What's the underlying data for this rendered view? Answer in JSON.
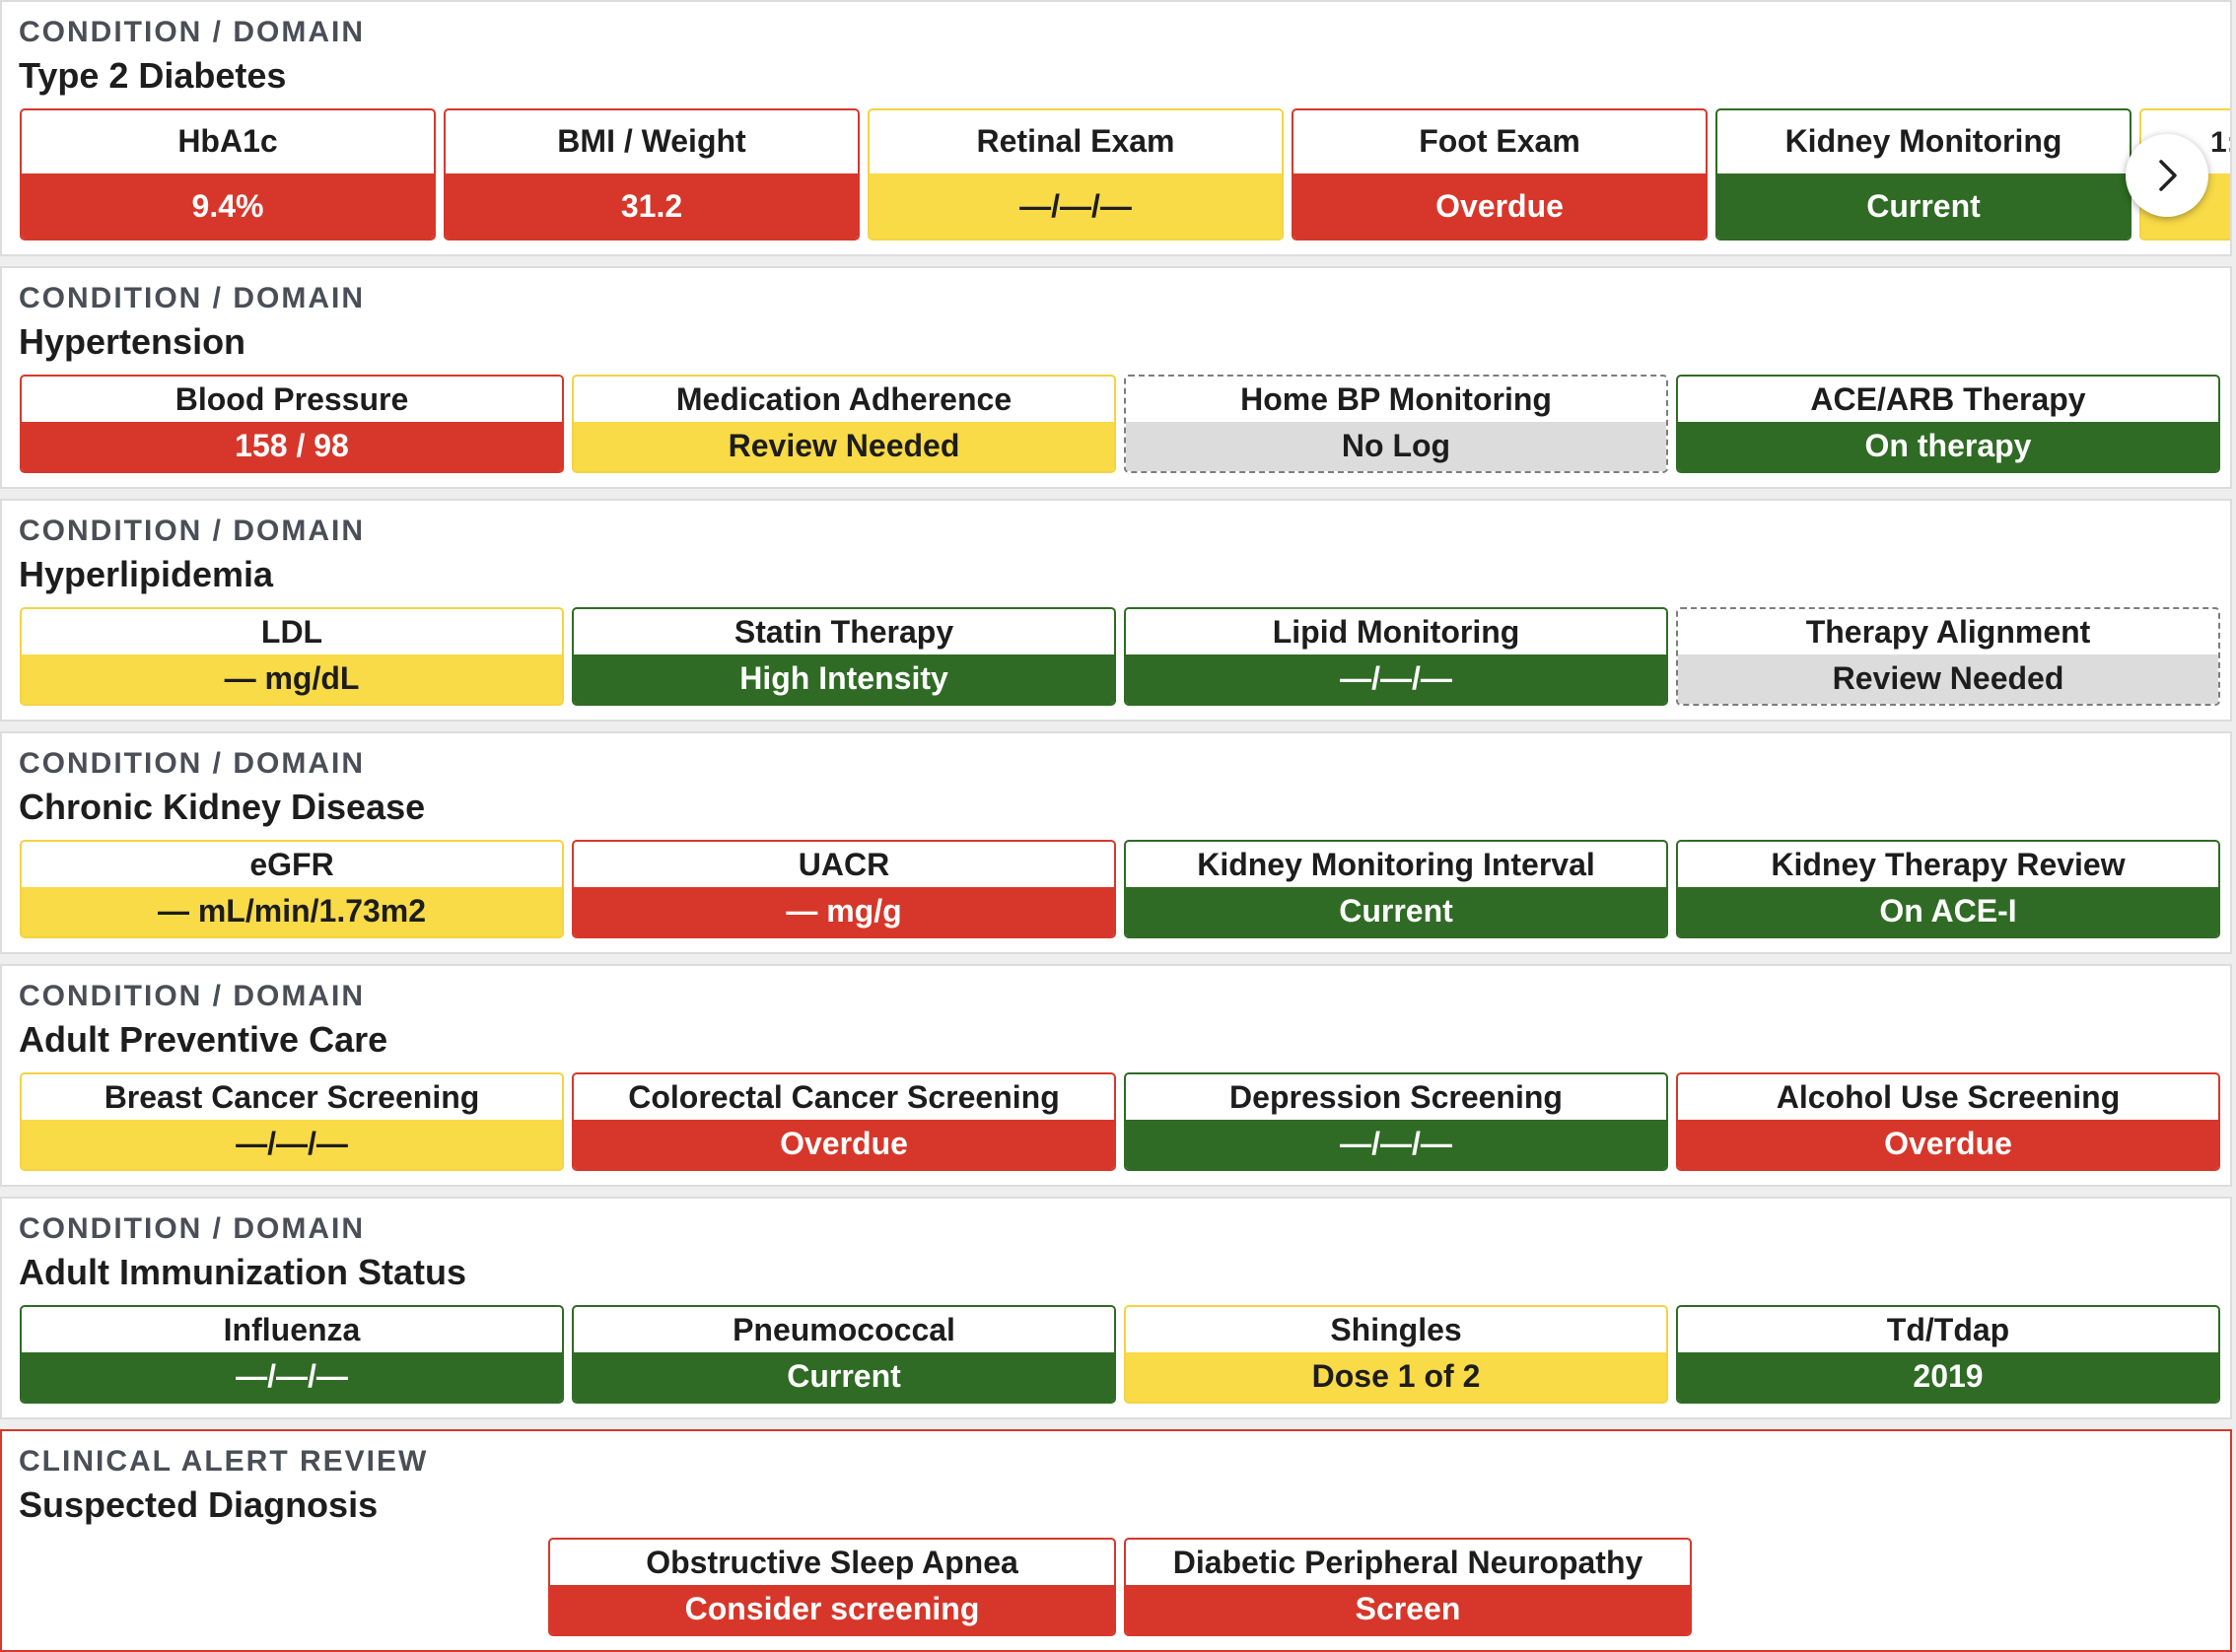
{
  "sections": [
    {
      "kicker": "CONDITION / DOMAIN",
      "title": "Type 2 Diabetes",
      "cards": [
        {
          "label": "HbA1c",
          "value": "9.4%",
          "status": "red"
        },
        {
          "label": "BMI / Weight",
          "value": "31.2",
          "status": "red"
        },
        {
          "label": "Retinal Exam",
          "value": "—/—/—",
          "status": "yellow"
        },
        {
          "label": "Foot Exam",
          "value": "Overdue",
          "status": "red"
        },
        {
          "label": "Kidney Monitoring",
          "value": "Current",
          "status": "green"
        }
      ],
      "peek_text": "1:"
    },
    {
      "kicker": "CONDITION / DOMAIN",
      "title": "Hypertension",
      "cards": [
        {
          "label": "Blood Pressure",
          "value": "158 / 98",
          "status": "red"
        },
        {
          "label": "Medication Adherence",
          "value": "Review Needed",
          "status": "yellow"
        },
        {
          "label": "Home BP Monitoring",
          "value": "No Log",
          "status": "gray"
        },
        {
          "label": "ACE/ARB Therapy",
          "value": "On therapy",
          "status": "green"
        }
      ]
    },
    {
      "kicker": "CONDITION / DOMAIN",
      "title": "Hyperlipidemia",
      "cards": [
        {
          "label": "LDL",
          "value": "— mg/dL",
          "status": "yellow"
        },
        {
          "label": "Statin Therapy",
          "value": "High Intensity",
          "status": "green"
        },
        {
          "label": "Lipid Monitoring",
          "value": "—/—/—",
          "status": "green"
        },
        {
          "label": "Therapy Alignment",
          "value": "Review Needed",
          "status": "gray"
        }
      ]
    },
    {
      "kicker": "CONDITION / DOMAIN",
      "title": "Chronic Kidney Disease",
      "cards": [
        {
          "label": "eGFR",
          "value": "— mL/min/1.73m2",
          "status": "yellow"
        },
        {
          "label": "UACR",
          "value": "— mg/g",
          "status": "red"
        },
        {
          "label": "Kidney Monitoring Interval",
          "value": "Current",
          "status": "green"
        },
        {
          "label": "Kidney Therapy Review",
          "value": "On ACE-I",
          "status": "green"
        }
      ]
    },
    {
      "kicker": "CONDITION / DOMAIN",
      "title": "Adult Preventive Care",
      "cards": [
        {
          "label": "Breast Cancer Screening",
          "value": "—/—/—",
          "status": "yellow"
        },
        {
          "label": "Colorectal Cancer Screening",
          "value": "Overdue",
          "status": "red"
        },
        {
          "label": "Depression Screening",
          "value": "—/—/—",
          "status": "green"
        },
        {
          "label": "Alcohol Use Screening",
          "value": "Overdue",
          "status": "red"
        }
      ]
    },
    {
      "kicker": "CONDITION / DOMAIN",
      "title": "Adult Immunization Status",
      "cards": [
        {
          "label": "Influenza",
          "value": "—/—/—",
          "status": "green"
        },
        {
          "label": "Pneumococcal",
          "value": "Current",
          "status": "green"
        },
        {
          "label": "Shingles",
          "value": "Dose 1 of 2",
          "status": "yellow"
        },
        {
          "label": "Td/Tdap",
          "value": "2019",
          "status": "green"
        }
      ]
    },
    {
      "kicker": "CLINICAL ALERT REVIEW",
      "title": "Suspected Diagnosis",
      "cards": [
        {
          "label": "Obstructive Sleep Apnea",
          "value": "Consider screening",
          "status": "red"
        },
        {
          "label": "Diabetic Peripheral Neuropathy",
          "value": "Screen",
          "status": "red"
        }
      ]
    }
  ],
  "icons": {
    "scroll_next": "chevron-right-icon"
  },
  "colors": {
    "red": "#d7372a",
    "yellow": "#f9da47",
    "green": "#2f6b24",
    "gray": "#dcdcdc"
  }
}
